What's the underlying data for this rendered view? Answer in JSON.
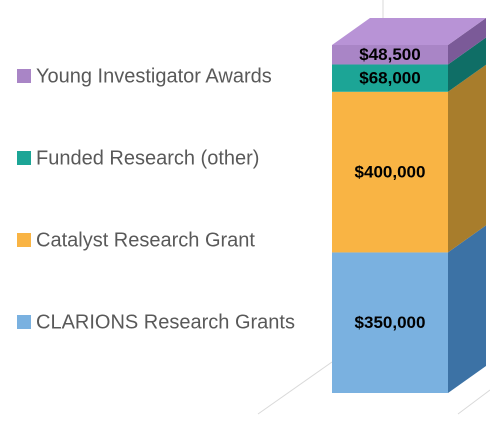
{
  "chart_data": {
    "type": "bar3d_stacked",
    "categories": [
      null
    ],
    "series": [
      {
        "name": "CLARIONS Research Grants",
        "color": "#7ab1e0",
        "side": "#3c72a5",
        "values": [
          350000
        ],
        "value_labels": [
          "$350,000"
        ]
      },
      {
        "name": "Catalyst Research Grant",
        "color": "#f9b444",
        "side": "#a87d2c",
        "values": [
          400000
        ],
        "value_labels": [
          "$400,000"
        ]
      },
      {
        "name": "Funded Research (other)",
        "color": "#1ca596",
        "side": "#0f6e66",
        "values": [
          68000
        ],
        "value_labels": [
          "$68,000"
        ]
      },
      {
        "name": "Young Investigator Awards",
        "color": "#a985c6",
        "side": "#7b5a98",
        "top": "#b893d6",
        "values": [
          48500
        ],
        "value_labels": [
          "$48,500"
        ]
      }
    ]
  }
}
